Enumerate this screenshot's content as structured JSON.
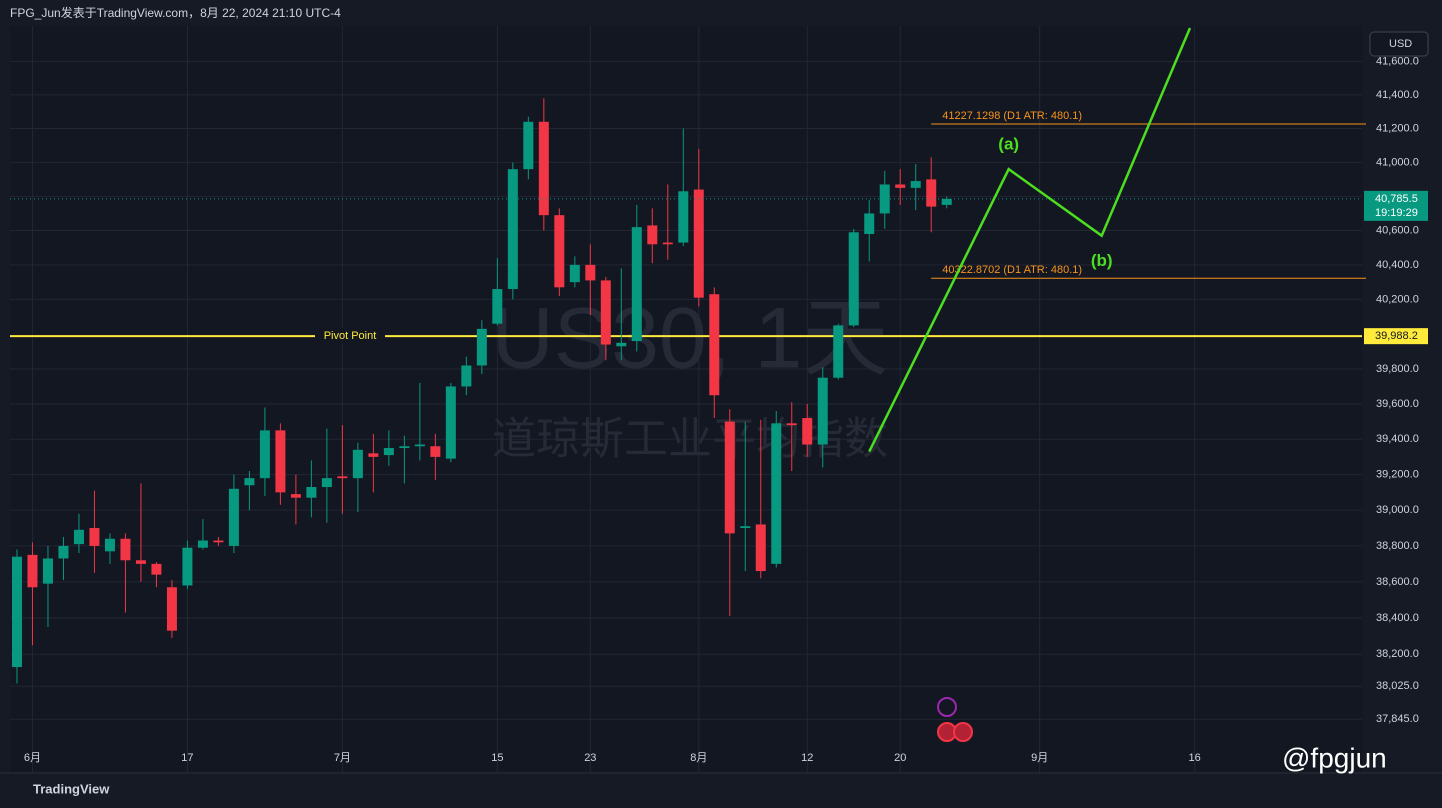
{
  "chart_data": {
    "type": "candlestick",
    "title": "FPG_Jun发表于TradingView.com，8月 22, 2024 21:10 UTC-4",
    "watermark": "US30, 1天",
    "watermark_sub": "道琼斯工业平均指数",
    "brand": "TradingView",
    "handle": "@fpgjun",
    "currency": "USD",
    "log_scale": true,
    "grid": true,
    "up_color": "#089981",
    "down_color": "#f23645",
    "x": [
      0,
      1,
      2,
      3,
      4,
      5,
      6,
      7,
      8,
      9,
      10,
      11,
      12,
      13,
      14,
      15,
      16,
      17,
      18,
      19,
      20,
      21,
      22,
      23,
      24,
      25,
      26,
      27,
      28,
      29,
      30,
      31,
      32,
      33,
      34,
      35,
      36,
      37,
      38,
      39,
      40,
      41,
      42,
      43,
      44,
      45,
      46,
      47,
      48,
      49,
      50,
      51,
      52,
      53,
      54,
      55,
      56,
      57,
      58,
      59,
      60
    ],
    "open": [
      38130,
      38750,
      38590,
      38730,
      38810,
      38900,
      38770,
      38840,
      38720,
      38700,
      38570,
      38580,
      38790,
      38830,
      38800,
      39140,
      39180,
      39450,
      39090,
      39070,
      39130,
      39190,
      39180,
      39320,
      39310,
      39350,
      39360,
      39360,
      39290,
      39700,
      39820,
      40060,
      40260,
      40960,
      41240,
      40690,
      40300,
      40400,
      40310,
      39930,
      39960,
      40630,
      40530,
      40530,
      40840,
      40230,
      39500,
      38900,
      38920,
      38700,
      39490,
      39520,
      39370,
      39750,
      40050,
      40580,
      40700,
      40870,
      40850,
      40900,
      40750
    ],
    "high": [
      38780,
      38820,
      38800,
      38850,
      38980,
      39110,
      38870,
      38870,
      39150,
      38710,
      38610,
      38830,
      38950,
      38850,
      39200,
      39220,
      39580,
      39490,
      39200,
      39280,
      39460,
      39480,
      39380,
      39430,
      39450,
      39420,
      39720,
      39430,
      39720,
      39870,
      40080,
      40440,
      41000,
      41270,
      41380,
      40730,
      40450,
      40520,
      40330,
      40380,
      40750,
      40730,
      40870,
      41200,
      41080,
      40270,
      39570,
      39500,
      39510,
      39560,
      39610,
      39600,
      39810,
      40060,
      40610,
      40780,
      40950,
      40960,
      40990,
      41030,
      40800
    ],
    "low": [
      38040,
      38250,
      38350,
      38610,
      38760,
      38650,
      38700,
      38430,
      38600,
      38570,
      38290,
      38560,
      38780,
      38800,
      38760,
      39000,
      39080,
      39030,
      38920,
      38960,
      38930,
      38980,
      38990,
      39100,
      39250,
      39150,
      39280,
      39170,
      39270,
      39650,
      39770,
      40050,
      40200,
      40900,
      40600,
      40220,
      40270,
      40110,
      39850,
      39850,
      39900,
      40410,
      40430,
      40510,
      40160,
      39520,
      38410,
      38660,
      38620,
      38680,
      39220,
      39300,
      39240,
      39740,
      40040,
      40420,
      40610,
      40750,
      40720,
      40590,
      40730
    ],
    "close": [
      38740,
      38570,
      38730,
      38800,
      38890,
      38800,
      38840,
      38720,
      38700,
      38640,
      38330,
      38790,
      38830,
      38820,
      39120,
      39180,
      39450,
      39100,
      39070,
      39130,
      39180,
      39180,
      39340,
      39300,
      39350,
      39360,
      39370,
      39300,
      39700,
      39820,
      40030,
      40260,
      40960,
      41240,
      40690,
      40270,
      40400,
      40310,
      39940,
      39950,
      40620,
      40520,
      40520,
      40830,
      40210,
      39650,
      38870,
      38910,
      38660,
      39490,
      39480,
      39370,
      39750,
      40050,
      40590,
      40700,
      40870,
      40850,
      40890,
      40740,
      40785.5
    ],
    "xlim": [
      -0.45,
      86.8
    ],
    "xticks": [
      {
        "value": 1,
        "label": "6月"
      },
      {
        "value": 11,
        "label": "17"
      },
      {
        "value": 21,
        "label": "7月"
      },
      {
        "value": 31,
        "label": "15"
      },
      {
        "value": 37,
        "label": "23"
      },
      {
        "value": 44,
        "label": "8月"
      },
      {
        "value": 51,
        "label": "12"
      },
      {
        "value": 57,
        "label": "20"
      },
      {
        "value": 66,
        "label": "9月"
      },
      {
        "value": 76,
        "label": "16"
      }
    ],
    "ylim": [
      37705,
      41812
    ],
    "yticks": [
      {
        "value": 41600,
        "label": "41,600.0"
      },
      {
        "value": 41400,
        "label": "41,400.0"
      },
      {
        "value": 41200,
        "label": "41,200.0"
      },
      {
        "value": 41000,
        "label": "41,000.0"
      },
      {
        "value": 40800,
        "label": "40,800.0"
      },
      {
        "value": 40600,
        "label": "40,600.0"
      },
      {
        "value": 40400,
        "label": "40,400.0"
      },
      {
        "value": 40200,
        "label": "40,200.0"
      },
      {
        "value": 39800,
        "label": "39,800.0"
      },
      {
        "value": 39600,
        "label": "39,600.0"
      },
      {
        "value": 39400,
        "label": "39,400.0"
      },
      {
        "value": 39200,
        "label": "39,200.0"
      },
      {
        "value": 39000,
        "label": "39,000.0"
      },
      {
        "value": 38800,
        "label": "38,800.0"
      },
      {
        "value": 38600,
        "label": "38,600.0"
      },
      {
        "value": 38400,
        "label": "38,400.0"
      },
      {
        "value": 38200,
        "label": "38,200.0"
      },
      {
        "value": 38025,
        "label": "38,025.0"
      },
      {
        "value": 37845,
        "label": "37,845.0"
      }
    ],
    "last_price": {
      "value": 40785.5,
      "label": "40,785.5",
      "countdown": "19:19:29",
      "color": "#089981"
    },
    "pivot": {
      "name": "Pivot Point",
      "value": 39988.2,
      "label": "39,988.2",
      "color": "#ffeb3b"
    },
    "levels": [
      {
        "value": 41227.1298,
        "label": "41227.1298 (D1 ATR: 480.1)",
        "from": 59,
        "color": "#f7931a"
      },
      {
        "value": 40322.8702,
        "label": "40322.8702 (D1 ATR: 480.1)",
        "from": 59,
        "color": "#f7931a"
      }
    ],
    "wave": {
      "color": "#4cdf20",
      "x": [
        55,
        64,
        70,
        75.7
      ],
      "values": [
        39330,
        40960,
        40570,
        41800
      ],
      "annotations": [
        {
          "text": "(a)",
          "point": 1
        },
        {
          "text": "(b)",
          "point": 2
        }
      ]
    }
  }
}
